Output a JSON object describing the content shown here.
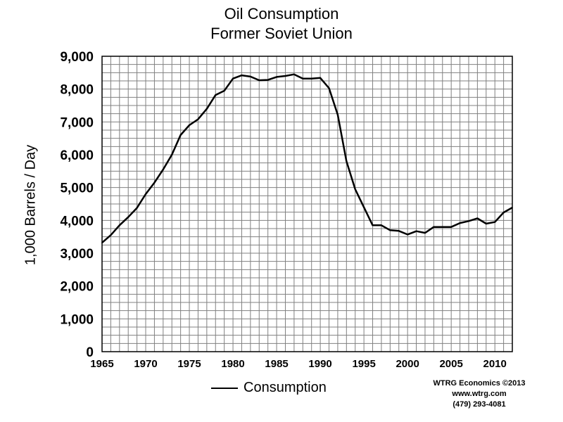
{
  "chart_data": {
    "type": "line",
    "title": "Oil Consumption",
    "subtitle": "Former Soviet Union",
    "ylabel": "1,000 Barrels / Day",
    "xlabel": "",
    "ylim": [
      0,
      9000
    ],
    "xlim": [
      1965,
      2012
    ],
    "yticks": [
      "0",
      "1,000",
      "2,000",
      "3,000",
      "4,000",
      "5,000",
      "6,000",
      "7,000",
      "8,000",
      "9,000"
    ],
    "xticks": [
      "1965",
      "1970",
      "1975",
      "1980",
      "1985",
      "1990",
      "1995",
      "2000",
      "2005",
      "2010"
    ],
    "grid": true,
    "legend_position": "bottom",
    "series": [
      {
        "name": "Consumption",
        "color": "#000000",
        "x": [
          1965,
          1966,
          1967,
          1968,
          1969,
          1970,
          1971,
          1972,
          1973,
          1974,
          1975,
          1976,
          1977,
          1978,
          1979,
          1980,
          1981,
          1982,
          1983,
          1984,
          1985,
          1986,
          1987,
          1988,
          1989,
          1990,
          1991,
          1992,
          1993,
          1994,
          1995,
          1996,
          1997,
          1998,
          1999,
          2000,
          2001,
          2002,
          2003,
          2004,
          2005,
          2006,
          2007,
          2008,
          2009,
          2010,
          2011,
          2012
        ],
        "y": [
          3320,
          3550,
          3850,
          4100,
          4380,
          4800,
          5150,
          5550,
          6000,
          6600,
          6900,
          7080,
          7400,
          7820,
          7950,
          8320,
          8420,
          8380,
          8270,
          8280,
          8370,
          8400,
          8450,
          8320,
          8320,
          8340,
          8030,
          7220,
          5800,
          4950,
          4400,
          3850,
          3850,
          3700,
          3680,
          3570,
          3670,
          3620,
          3800,
          3800,
          3800,
          3920,
          3980,
          4060,
          3900,
          3950,
          4240,
          4390
        ]
      }
    ]
  },
  "legend": {
    "label": "Consumption"
  },
  "credit": {
    "line1": "WTRG Economics  ©2013",
    "line2": "www.wtrg.com",
    "line3": "(479) 293-4081"
  }
}
